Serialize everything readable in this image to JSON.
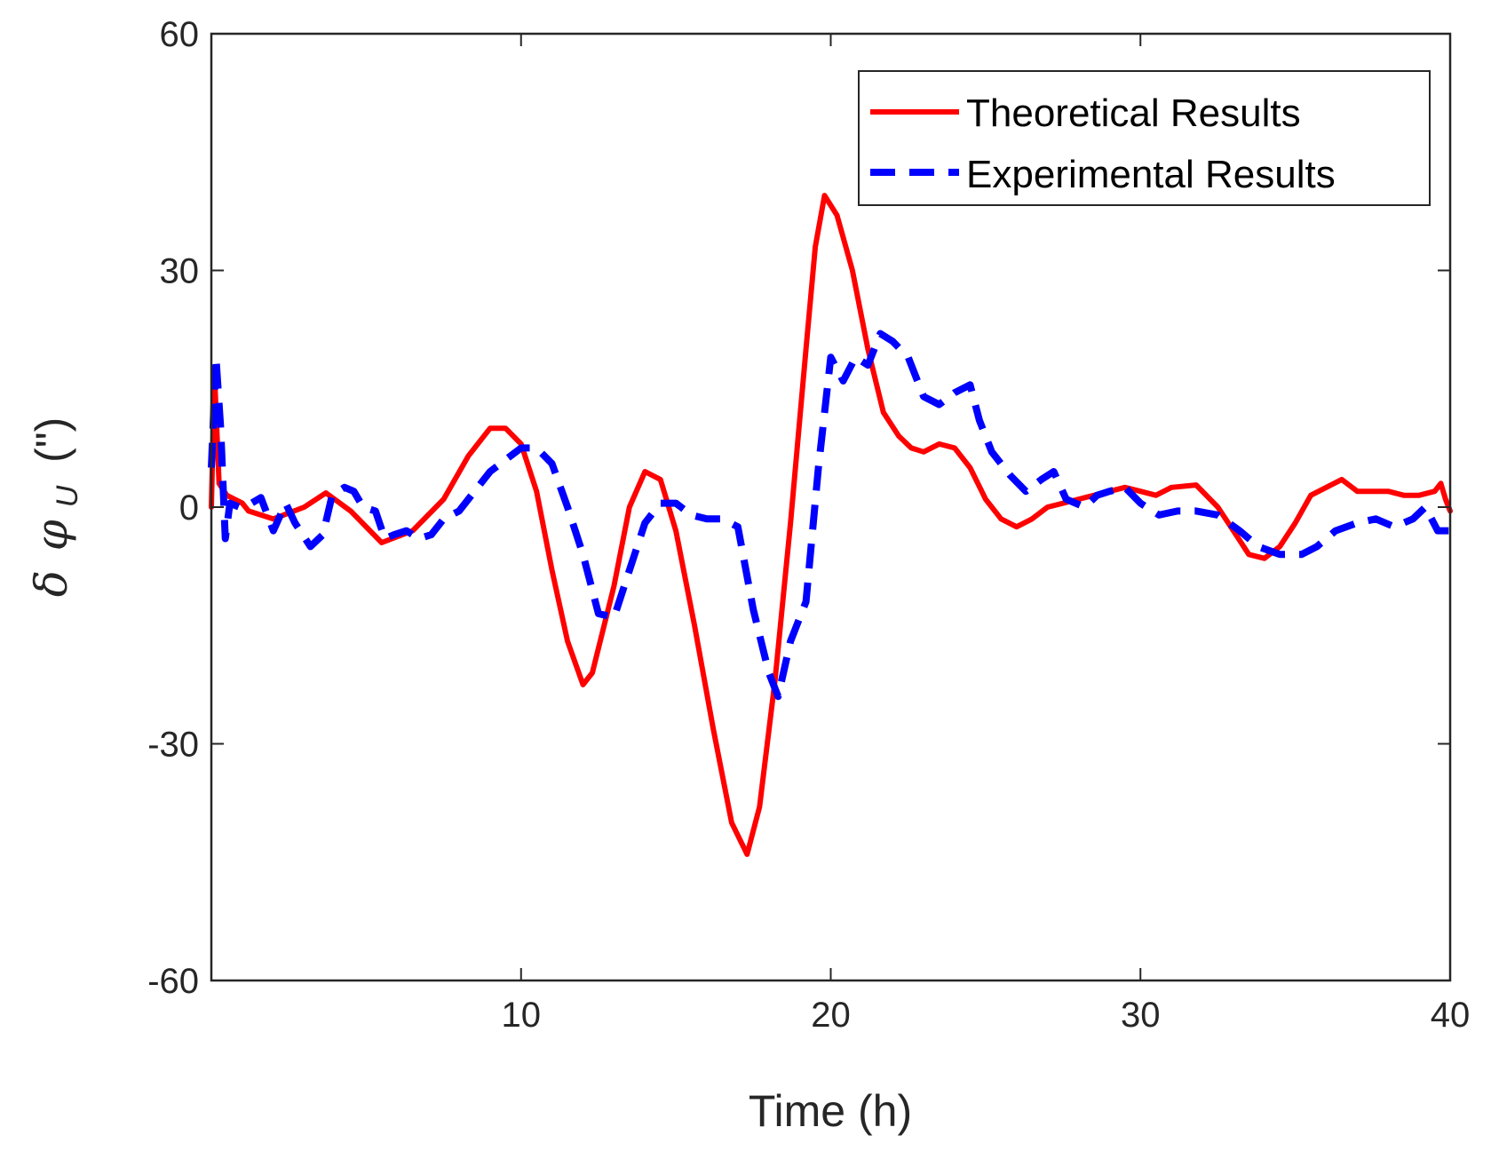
{
  "chart_data": {
    "type": "line",
    "title": "",
    "xlabel": "Time (h)",
    "ylabel": "δ φ_U (\")",
    "ylabel_parts": {
      "delta": "δ",
      "phi": "φ",
      "sub": "U",
      "unit": "(\")"
    },
    "xlim": [
      0,
      40
    ],
    "ylim": [
      -60,
      60
    ],
    "xticks": [
      10,
      20,
      30,
      40
    ],
    "xtick_labels": [
      "10",
      "20",
      "30",
      "40"
    ],
    "yticks": [
      -60,
      -30,
      0,
      30,
      60
    ],
    "ytick_labels": [
      "-60",
      "-30",
      "0",
      "30",
      "60"
    ],
    "grid": false,
    "legend_position": "top-right",
    "series": [
      {
        "name": "Theoretical Results",
        "color": "#ff0000",
        "style": "solid",
        "points": [
          [
            0,
            0
          ],
          [
            0.1,
            17
          ],
          [
            0.25,
            3
          ],
          [
            0.5,
            1.5
          ],
          [
            1,
            0.5
          ],
          [
            1.2,
            -0.5
          ],
          [
            2,
            -1.5
          ],
          [
            3,
            0
          ],
          [
            3.7,
            1.8
          ],
          [
            4.5,
            -0.5
          ],
          [
            5.5,
            -4.5
          ],
          [
            6.5,
            -3
          ],
          [
            7.5,
            1
          ],
          [
            8.3,
            6.5
          ],
          [
            9,
            10
          ],
          [
            9.5,
            10
          ],
          [
            10,
            8
          ],
          [
            10.5,
            2
          ],
          [
            11,
            -8
          ],
          [
            11.5,
            -17
          ],
          [
            12,
            -22.5
          ],
          [
            12.3,
            -21
          ],
          [
            13,
            -10
          ],
          [
            13.5,
            0
          ],
          [
            14,
            4.5
          ],
          [
            14.5,
            3.5
          ],
          [
            15,
            -3
          ],
          [
            15.6,
            -15
          ],
          [
            16.2,
            -28
          ],
          [
            16.8,
            -40
          ],
          [
            17.3,
            -44
          ],
          [
            17.7,
            -38
          ],
          [
            18.2,
            -22
          ],
          [
            18.7,
            -2
          ],
          [
            19.2,
            20
          ],
          [
            19.5,
            33
          ],
          [
            19.8,
            39.5
          ],
          [
            20.2,
            37
          ],
          [
            20.7,
            30
          ],
          [
            21.2,
            20
          ],
          [
            21.7,
            12
          ],
          [
            22.2,
            9
          ],
          [
            22.6,
            7.5
          ],
          [
            23,
            7
          ],
          [
            23.5,
            8
          ],
          [
            24,
            7.5
          ],
          [
            24.5,
            5
          ],
          [
            25,
            1
          ],
          [
            25.5,
            -1.5
          ],
          [
            26,
            -2.5
          ],
          [
            26.5,
            -1.5
          ],
          [
            27,
            0
          ],
          [
            27.5,
            0.5
          ],
          [
            28,
            1
          ],
          [
            29,
            2
          ],
          [
            29.5,
            2.5
          ],
          [
            30,
            2
          ],
          [
            30.5,
            1.5
          ],
          [
            31,
            2.5
          ],
          [
            31.8,
            2.8
          ],
          [
            32.5,
            0
          ],
          [
            33,
            -3
          ],
          [
            33.5,
            -6
          ],
          [
            34,
            -6.5
          ],
          [
            34.5,
            -5
          ],
          [
            35,
            -2
          ],
          [
            35.5,
            1.5
          ],
          [
            36.5,
            3.5
          ],
          [
            37,
            2
          ],
          [
            38,
            2
          ],
          [
            38.5,
            1.5
          ],
          [
            39,
            1.5
          ],
          [
            39.5,
            2
          ],
          [
            39.7,
            3
          ],
          [
            39.85,
            1
          ],
          [
            40,
            -0.5
          ]
        ]
      },
      {
        "name": "Experimental Results",
        "color": "#0000ff",
        "style": "dashed",
        "points": [
          [
            0,
            5
          ],
          [
            0.15,
            19
          ],
          [
            0.3,
            10
          ],
          [
            0.45,
            -4
          ],
          [
            0.6,
            0.5
          ],
          [
            0.9,
            0
          ],
          [
            1.3,
            0.5
          ],
          [
            1.6,
            1.2
          ],
          [
            2,
            -3
          ],
          [
            2.4,
            0.5
          ],
          [
            2.7,
            -2
          ],
          [
            3.2,
            -5
          ],
          [
            3.6,
            -3.5
          ],
          [
            3.9,
            1.5
          ],
          [
            4.3,
            2.5
          ],
          [
            4.6,
            2
          ],
          [
            4.9,
            0
          ],
          [
            5.3,
            -0.5
          ],
          [
            5.6,
            -4
          ],
          [
            5.9,
            -3.5
          ],
          [
            6.3,
            -3
          ],
          [
            6.7,
            -4
          ],
          [
            7.1,
            -3.5
          ],
          [
            7.5,
            -1.5
          ],
          [
            8,
            -0.5
          ],
          [
            8.5,
            2
          ],
          [
            9,
            4.5
          ],
          [
            9.5,
            6
          ],
          [
            10,
            7.5
          ],
          [
            10.5,
            7.5
          ],
          [
            11,
            5.5
          ],
          [
            11.5,
            0
          ],
          [
            12,
            -6
          ],
          [
            12.5,
            -13.5
          ],
          [
            13,
            -14
          ],
          [
            13.5,
            -8
          ],
          [
            14,
            -2
          ],
          [
            14.5,
            0.5
          ],
          [
            15,
            0.5
          ],
          [
            15.5,
            -1
          ],
          [
            16,
            -1.5
          ],
          [
            16.5,
            -1.5
          ],
          [
            17,
            -2.5
          ],
          [
            17.5,
            -13
          ],
          [
            18,
            -21
          ],
          [
            18.3,
            -24
          ],
          [
            18.7,
            -17
          ],
          [
            19.2,
            -12
          ],
          [
            19.6,
            5
          ],
          [
            20,
            19
          ],
          [
            20.4,
            16
          ],
          [
            20.8,
            19
          ],
          [
            21.2,
            18
          ],
          [
            21.6,
            22
          ],
          [
            22,
            21
          ],
          [
            22.5,
            19
          ],
          [
            23,
            14
          ],
          [
            23.5,
            13
          ],
          [
            24,
            14.5
          ],
          [
            24.5,
            15.5
          ],
          [
            24.8,
            11
          ],
          [
            25.2,
            7
          ],
          [
            25.8,
            4
          ],
          [
            26.3,
            2
          ],
          [
            26.8,
            3.5
          ],
          [
            27.2,
            4.5
          ],
          [
            27.6,
            1
          ],
          [
            28.2,
            0
          ],
          [
            28.6,
            1.5
          ],
          [
            29,
            2
          ],
          [
            29.5,
            2.5
          ],
          [
            30,
            0.5
          ],
          [
            30.6,
            -1
          ],
          [
            31.2,
            -0.5
          ],
          [
            31.8,
            -0.5
          ],
          [
            32.5,
            -1
          ],
          [
            33.2,
            -3
          ],
          [
            33.8,
            -5
          ],
          [
            34.5,
            -6
          ],
          [
            35.2,
            -6
          ],
          [
            35.7,
            -5
          ],
          [
            36.3,
            -3
          ],
          [
            37,
            -2
          ],
          [
            37.6,
            -1.5
          ],
          [
            38.2,
            -2.5
          ],
          [
            38.8,
            -1.5
          ],
          [
            39.2,
            0
          ],
          [
            39.6,
            -3
          ],
          [
            40,
            -3
          ]
        ]
      }
    ]
  }
}
